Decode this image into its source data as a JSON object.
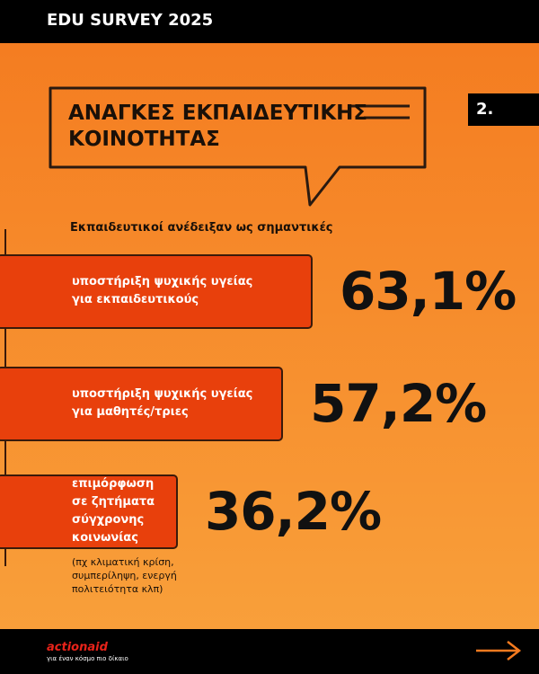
{
  "header": {
    "title": "EDU SURVEY 2025",
    "number": "2."
  },
  "chart_data": {
    "type": "hbar",
    "title": "ΑΝΑΓΚΕΣ ΕΚΠΑΙΔΕΥΤΙΚΗΣ ΚΟΙΝΟΤΗΤΑΣ",
    "subtitle": "Εκπαιδευτικοί ανέδειξαν ως σημαντικές",
    "categories": [
      "υποστήριξη ψυχικής υγείας\nγια εκπαιδευτικούς",
      "υποστήριξη ψυχικής υγείας\nγια μαθητές/τριες",
      "επιμόρφωση\nσε ζητήματα\nσύγχρονης\nκοινωνίας"
    ],
    "values": [
      63.1,
      57.2,
      36.2
    ],
    "value_labels": [
      "63,1%",
      "57,2%",
      "36,2%"
    ],
    "color": "#e8400c",
    "annotation": "(πχ κλιματική κρίση,\nσυμπερίληψη, ενεργή\nπολιτειότητα κλπ)"
  },
  "footer": {
    "logo": "actionaid",
    "tagline": "για έναν κόσμο πιο δίκαιο"
  }
}
